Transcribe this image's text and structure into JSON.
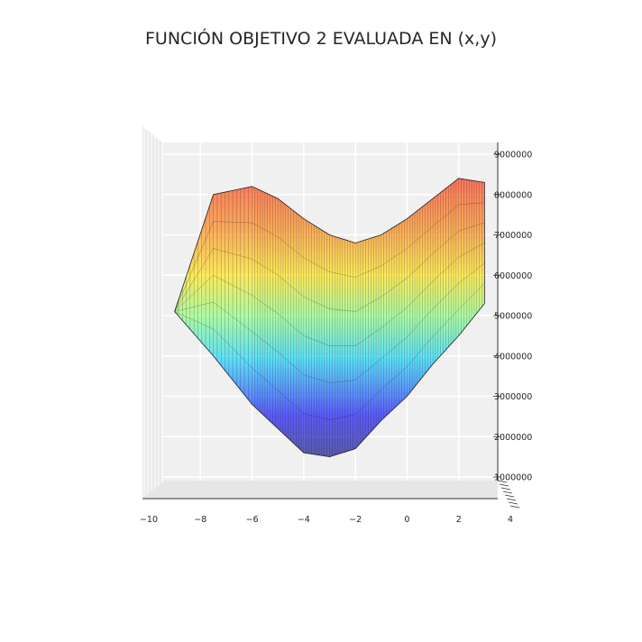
{
  "chart_data": {
    "type": "surface3d",
    "title": "FUNCIÓN OBJETIVO 2 EVALUADA EN (x,y)",
    "xlabel": "",
    "ylabel": "",
    "zlabel": "",
    "colormap": "jet",
    "alpha": 0.5,
    "x_ticks": [
      "−10",
      "−8",
      "−6",
      "−4",
      "−2",
      "0",
      "2",
      "4"
    ],
    "z_ticks": [
      "1000000",
      "2000000",
      "3000000",
      "4000000",
      "5000000",
      "6000000",
      "7000000",
      "8000000",
      "9000000"
    ],
    "xlim": [
      -10,
      4
    ],
    "zlim": [
      700000,
      9300000
    ],
    "approx_surface_profile": {
      "x": [
        -9,
        -7.5,
        -6,
        -5,
        -4,
        -3,
        -2,
        -1,
        0,
        1,
        2,
        3
      ],
      "z_back_rim": [
        5100000,
        8000000,
        8200000,
        7900000,
        7400000,
        7000000,
        6800000,
        7000000,
        7400000,
        7900000,
        8400000,
        8300000
      ],
      "z_valley": [
        5100000,
        4000000,
        2800000,
        2200000,
        1600000,
        1500000,
        1700000,
        2400000,
        3000000,
        3800000,
        4500000,
        5300000
      ]
    }
  }
}
